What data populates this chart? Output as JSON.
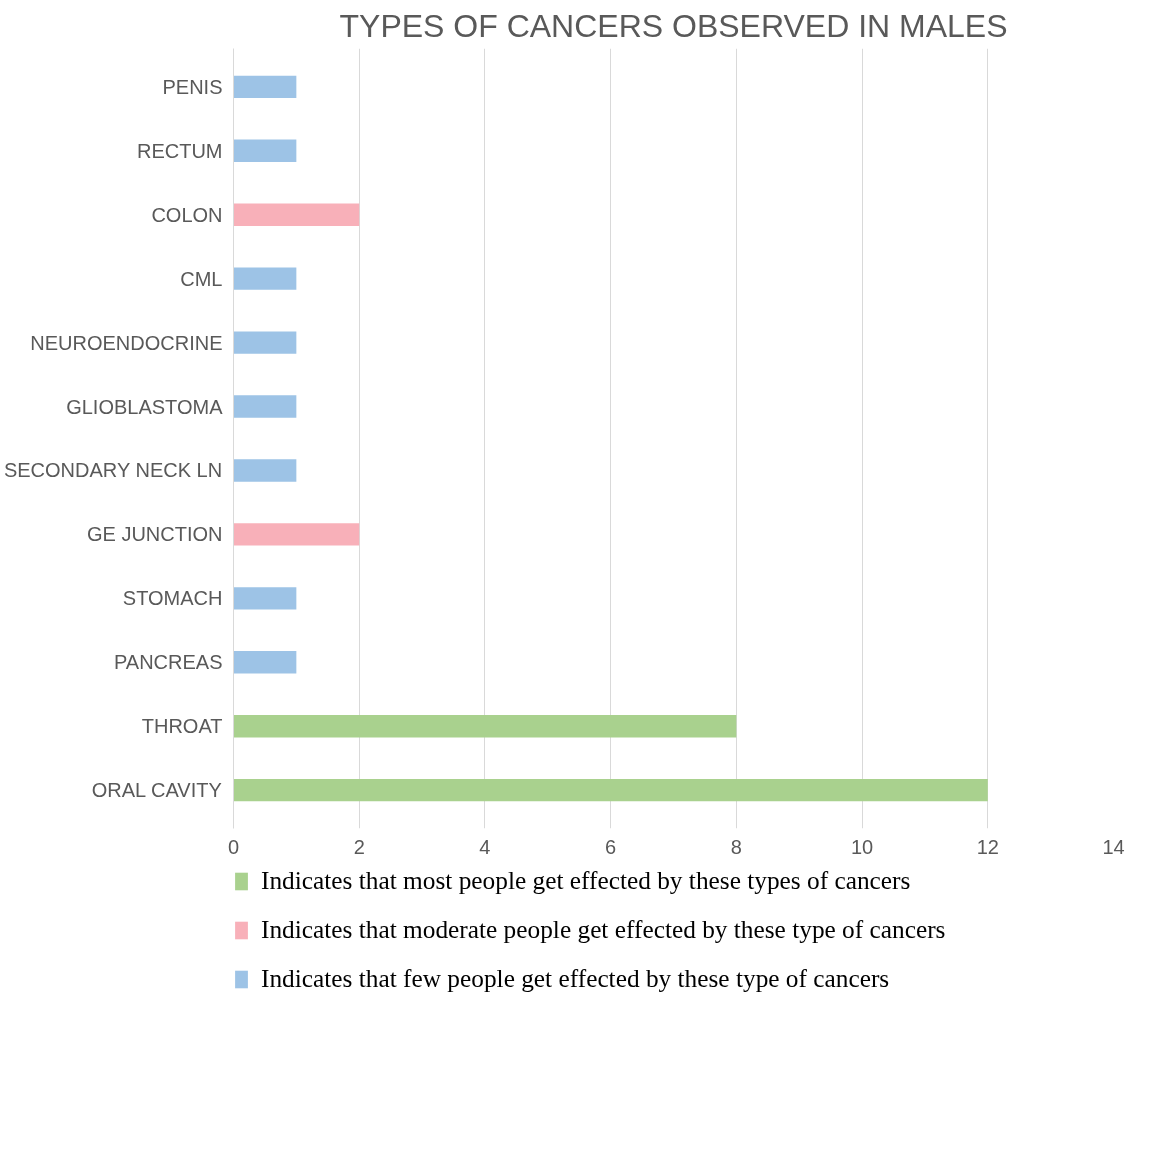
{
  "chart_data": {
    "type": "bar",
    "orientation": "horizontal",
    "title": "TYPES OF CANCERS OBSERVED IN MALES",
    "categories": [
      "PENIS",
      "RECTUM",
      "COLON",
      "CML",
      "NEUROENDOCRINE",
      "GLIOBLASTOMA",
      "SECONDARY NECK LN",
      "GE JUNCTION",
      "STOMACH",
      "PANCREAS",
      "THROAT",
      "ORAL CAVITY"
    ],
    "series": [
      {
        "name": "Indicates that most people get effected by these types of cancers",
        "color": "#a9d18e",
        "values": [
          null,
          null,
          null,
          null,
          null,
          null,
          null,
          null,
          null,
          null,
          8,
          12
        ]
      },
      {
        "name": "Indicates that moderate people get effected by these type of cancers",
        "color": "#f8b0b9",
        "values": [
          null,
          null,
          2,
          null,
          null,
          null,
          null,
          2,
          null,
          null,
          null,
          null
        ]
      },
      {
        "name": "Indicates that few people get effected by these type of cancers",
        "color": "#9dc3e6",
        "values": [
          1,
          1,
          null,
          1,
          1,
          1,
          1,
          null,
          1,
          1,
          null,
          null
        ]
      }
    ],
    "xlim": [
      0,
      14
    ],
    "xticks": [
      0,
      2,
      4,
      6,
      8,
      10,
      12,
      14
    ],
    "grid": "x",
    "legend": "bottom"
  }
}
